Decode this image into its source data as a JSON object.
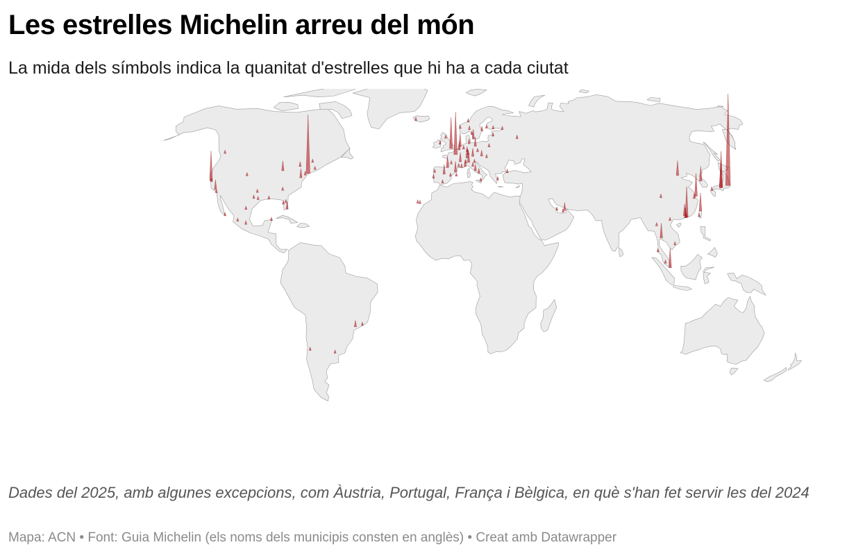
{
  "header": {
    "title": "Les estrelles Michelin arreu del món",
    "subtitle": "La mida dels símbols indica la quanitat d'estrelles que hi ha a cada ciutat"
  },
  "map": {
    "projection": "robinson",
    "land_color": "#ebebeb",
    "border_color": "#9a9a9a",
    "marker_color": "#b01116",
    "marker_shape": "spike",
    "marker_size_meaning": "stars per city",
    "markers": [
      {
        "lon": -122.4,
        "lat": 37.8,
        "stars": 90
      },
      {
        "lon": -121.9,
        "lat": 37.3,
        "stars": 8
      },
      {
        "lon": -118.2,
        "lat": 34.0,
        "stars": 30
      },
      {
        "lon": -117.2,
        "lat": 32.7,
        "stars": 4
      },
      {
        "lon": -123.1,
        "lat": 49.3,
        "stars": 6
      },
      {
        "lon": -74.0,
        "lat": 40.7,
        "stars": 180
      },
      {
        "lon": -77.0,
        "lat": 38.9,
        "stars": 28
      },
      {
        "lon": -87.6,
        "lat": 41.9,
        "stars": 30
      },
      {
        "lon": -71.1,
        "lat": 42.4,
        "stars": 8
      },
      {
        "lon": -75.2,
        "lat": 40.0,
        "stars": 12
      },
      {
        "lon": -84.4,
        "lat": 33.7,
        "stars": 8
      },
      {
        "lon": -80.2,
        "lat": 25.8,
        "stars": 22
      },
      {
        "lon": -90.1,
        "lat": 30.0,
        "stars": 6
      },
      {
        "lon": -97.7,
        "lat": 30.3,
        "stars": 6
      },
      {
        "lon": -95.4,
        "lat": 29.8,
        "stars": 8
      },
      {
        "lon": -96.8,
        "lat": 32.8,
        "stars": 6
      },
      {
        "lon": -105.0,
        "lat": 39.7,
        "stars": 6
      },
      {
        "lon": -82.5,
        "lat": 27.9,
        "stars": 6
      },
      {
        "lon": -81.4,
        "lat": 28.5,
        "stars": 5
      },
      {
        "lon": -79.4,
        "lat": 43.7,
        "stars": 15
      },
      {
        "lon": -73.6,
        "lat": 45.5,
        "stars": 6
      },
      {
        "lon": -99.1,
        "lat": 19.4,
        "stars": 12
      },
      {
        "lon": -103.3,
        "lat": 20.7,
        "stars": 3
      },
      {
        "lon": -100.3,
        "lat": 25.7,
        "stars": 3
      },
      {
        "lon": -87.0,
        "lat": 21.0,
        "stars": 3
      },
      {
        "lon": -109.9,
        "lat": 23.0,
        "stars": 3
      },
      {
        "lon": -46.6,
        "lat": -23.5,
        "stars": 20
      },
      {
        "lon": -43.2,
        "lat": -22.9,
        "stars": 8
      },
      {
        "lon": -58.4,
        "lat": -34.6,
        "stars": 3
      },
      {
        "lon": -70.6,
        "lat": -33.4,
        "stars": 2
      },
      {
        "lon": 2.35,
        "lat": 48.86,
        "stars": 130
      },
      {
        "lon": -0.13,
        "lat": 51.5,
        "stars": 95
      },
      {
        "lon": 4.9,
        "lat": 52.37,
        "stars": 40
      },
      {
        "lon": 13.4,
        "lat": 52.5,
        "stars": 28
      },
      {
        "lon": 9.2,
        "lat": 45.5,
        "stars": 30
      },
      {
        "lon": 12.5,
        "lat": 41.9,
        "stars": 20
      },
      {
        "lon": 2.17,
        "lat": 41.39,
        "stars": 32
      },
      {
        "lon": -3.7,
        "lat": 40.4,
        "stars": 30
      },
      {
        "lon": -2.0,
        "lat": 43.3,
        "stars": 35
      },
      {
        "lon": 4.35,
        "lat": 50.85,
        "stars": 25
      },
      {
        "lon": 12.57,
        "lat": 55.68,
        "stars": 30
      },
      {
        "lon": 18.07,
        "lat": 59.33,
        "stars": 14
      },
      {
        "lon": 10.75,
        "lat": 59.9,
        "stars": 12
      },
      {
        "lon": 24.9,
        "lat": 60.2,
        "stars": 6
      },
      {
        "lon": 8.5,
        "lat": 47.4,
        "stars": 35
      },
      {
        "lon": 16.4,
        "lat": 48.2,
        "stars": 18
      },
      {
        "lon": 11.6,
        "lat": 48.1,
        "stars": 25
      },
      {
        "lon": 7.3,
        "lat": 43.7,
        "stars": 20
      },
      {
        "lon": 4.8,
        "lat": 45.76,
        "stars": 28
      },
      {
        "lon": -9.1,
        "lat": 38.7,
        "stars": 12
      },
      {
        "lon": -8.6,
        "lat": 41.15,
        "stars": 8
      },
      {
        "lon": 14.4,
        "lat": 50.1,
        "stars": 5
      },
      {
        "lon": 19.0,
        "lat": 47.5,
        "stars": 8
      },
      {
        "lon": 21.0,
        "lat": 52.2,
        "stars": 5
      },
      {
        "lon": 28.98,
        "lat": 41.0,
        "stars": 12
      },
      {
        "lon": 23.7,
        "lat": 37.98,
        "stars": 10
      },
      {
        "lon": 14.25,
        "lat": 40.85,
        "stars": 15
      },
      {
        "lon": -6.26,
        "lat": 53.35,
        "stars": 12
      },
      {
        "lon": -3.2,
        "lat": 55.95,
        "stars": 8
      },
      {
        "lon": 37.6,
        "lat": 55.75,
        "stars": 12
      },
      {
        "lon": 30.3,
        "lat": 59.9,
        "stars": 6
      },
      {
        "lon": 24.1,
        "lat": 56.95,
        "stars": 4
      },
      {
        "lon": 21.0,
        "lat": 60.5,
        "stars": 6
      },
      {
        "lon": 10.4,
        "lat": 63.4,
        "stars": 5
      },
      {
        "lon": 5.3,
        "lat": 60.4,
        "stars": 5
      },
      {
        "lon": 11.97,
        "lat": 57.7,
        "stars": 6
      },
      {
        "lon": -21.9,
        "lat": 64.1,
        "stars": 2
      },
      {
        "lon": 9.99,
        "lat": 53.55,
        "stars": 15
      },
      {
        "lon": 6.8,
        "lat": 51.2,
        "stars": 12
      },
      {
        "lon": 8.7,
        "lat": 50.1,
        "stars": 12
      },
      {
        "lon": 9.2,
        "lat": 48.8,
        "stars": 15
      },
      {
        "lon": 0.0,
        "lat": 44.8,
        "stars": 10
      },
      {
        "lon": 3.9,
        "lat": 43.6,
        "stars": 10
      },
      {
        "lon": 5.4,
        "lat": 43.3,
        "stars": 12
      },
      {
        "lon": 7.7,
        "lat": 45.1,
        "stars": 12
      },
      {
        "lon": 11.3,
        "lat": 43.8,
        "stars": 12
      },
      {
        "lon": 12.3,
        "lat": 45.4,
        "stars": 10
      },
      {
        "lon": -0.4,
        "lat": 39.5,
        "stars": 10
      },
      {
        "lon": -4.4,
        "lat": 36.7,
        "stars": 8
      },
      {
        "lon": 2.6,
        "lat": 39.6,
        "stars": 6
      },
      {
        "lon": -15.4,
        "lat": 28.1,
        "stars": 4
      },
      {
        "lon": -16.5,
        "lat": 28.3,
        "stars": 3
      },
      {
        "lon": 15.0,
        "lat": 37.5,
        "stars": 4
      },
      {
        "lon": 55.3,
        "lat": 25.2,
        "stars": 25
      },
      {
        "lon": 54.4,
        "lat": 24.5,
        "stars": 5
      },
      {
        "lon": 51.5,
        "lat": 25.3,
        "stars": 4
      },
      {
        "lon": 139.7,
        "lat": 35.7,
        "stars": 280
      },
      {
        "lon": 135.5,
        "lat": 34.7,
        "stars": 85
      },
      {
        "lon": 135.77,
        "lat": 35.01,
        "stars": 110
      },
      {
        "lon": 130.4,
        "lat": 33.6,
        "stars": 12
      },
      {
        "lon": 126.98,
        "lat": 37.57,
        "stars": 45
      },
      {
        "lon": 121.47,
        "lat": 31.23,
        "stars": 70
      },
      {
        "lon": 116.4,
        "lat": 39.9,
        "stars": 45
      },
      {
        "lon": 114.17,
        "lat": 22.3,
        "stars": 95
      },
      {
        "lon": 113.3,
        "lat": 23.1,
        "stars": 35
      },
      {
        "lon": 113.55,
        "lat": 22.2,
        "stars": 30
      },
      {
        "lon": 121.5,
        "lat": 25.05,
        "stars": 55
      },
      {
        "lon": 120.3,
        "lat": 22.6,
        "stars": 10
      },
      {
        "lon": 103.8,
        "lat": 30.6,
        "stars": 12
      },
      {
        "lon": 120.15,
        "lat": 30.25,
        "stars": 15
      },
      {
        "lon": 114.06,
        "lat": 22.55,
        "stars": 10
      },
      {
        "lon": 100.5,
        "lat": 13.75,
        "stars": 45
      },
      {
        "lon": 103.85,
        "lat": 1.29,
        "stars": 60
      },
      {
        "lon": 105.8,
        "lat": 21.0,
        "stars": 8
      },
      {
        "lon": 106.7,
        "lat": 10.8,
        "stars": 8
      },
      {
        "lon": 101.7,
        "lat": 3.14,
        "stars": 5
      },
      {
        "lon": 98.99,
        "lat": 18.79,
        "stars": 6
      },
      {
        "lon": 98.4,
        "lat": 7.9,
        "stars": 4
      }
    ]
  },
  "footer": {
    "notes": "Dades del 2025, amb algunes excepcions, com Àustria, Portugal, França i Bèlgica, en què s'han fet servir les del 2024",
    "byline": "Mapa: ACN • Font: Guia Michelin (els noms dels municipis consten en anglès) • Creat amb Datawrapper"
  }
}
